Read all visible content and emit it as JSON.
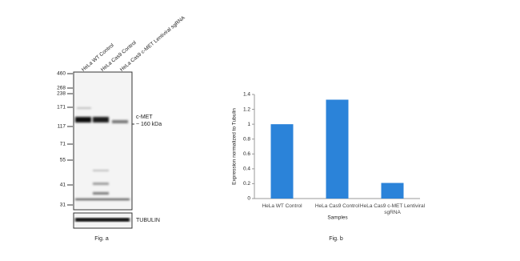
{
  "blot": {
    "lanes": [
      "HeLa WT Control",
      "HeLa Cas9 Control",
      "HeLa Cas9 c-MET Lentiviral sgRNA"
    ],
    "markers": [
      "460",
      "268",
      "238",
      "171",
      "117",
      "71",
      "55",
      "41",
      "31"
    ],
    "target": "c-MET",
    "size": "~ 160 kDa",
    "loading_control": "TUBULIN",
    "caption": "Fig. a"
  },
  "chart_data": {
    "type": "bar",
    "caption": "Fig. b",
    "ylabel": "Expression normalized to Tubulin",
    "xlabel": "Samples",
    "categories": [
      "HeLa WT Control",
      "HeLa Cas9 Control",
      "HeLa Cas9 c-MET Lentiviral sgRNA"
    ],
    "values": [
      1.0,
      1.33,
      0.21
    ],
    "color": "#2b83d9",
    "ylim": [
      0,
      1.4
    ],
    "yticks": [
      0,
      0.2,
      0.4,
      0.6,
      0.8,
      1,
      1.2,
      1.4
    ]
  }
}
